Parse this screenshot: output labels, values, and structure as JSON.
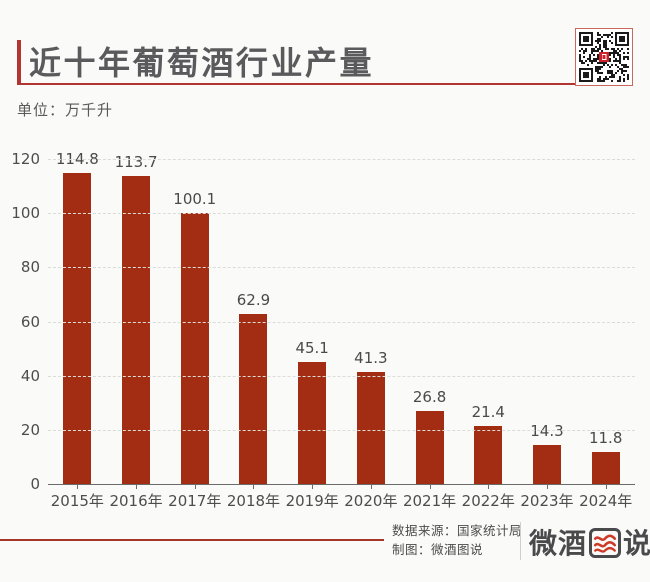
{
  "header": {
    "title": "近十年葡萄酒行业产量",
    "unit_label": "单位：万千升"
  },
  "chart_data": {
    "type": "bar",
    "title": "近十年葡萄酒行业产量",
    "unit": "万千升",
    "categories": [
      "2015年",
      "2016年",
      "2017年",
      "2018年",
      "2019年",
      "2020年",
      "2021年",
      "2022年",
      "2023年",
      "2024年"
    ],
    "values": [
      114.8,
      113.7,
      100.1,
      62.9,
      45.1,
      41.3,
      26.8,
      21.4,
      14.3,
      11.8
    ],
    "ylim": [
      0,
      120
    ],
    "yticks": [
      0,
      20,
      40,
      60,
      80,
      100,
      120
    ],
    "grid": "horizontal-dashed",
    "legend": "none",
    "data_labels": "above-bars",
    "bar_color": "#A32D13"
  },
  "footer": {
    "source_label": "数据来源：国家统计局",
    "credit_label": "制图：微酒图说",
    "logo": {
      "left": "微酒",
      "boxed_char": "图",
      "right": "说"
    }
  },
  "colors": {
    "background": "#FAFAF8",
    "accent_red": "#B13530",
    "bar_red": "#A32D13",
    "title_gray": "#5A5A5C",
    "text_gray": "#4D4D4D",
    "qr_border_red": "#C9685C"
  },
  "icons": {
    "qr_code": "qr-code-icon",
    "logo_wave_box": "logo-wave-box-icon"
  }
}
